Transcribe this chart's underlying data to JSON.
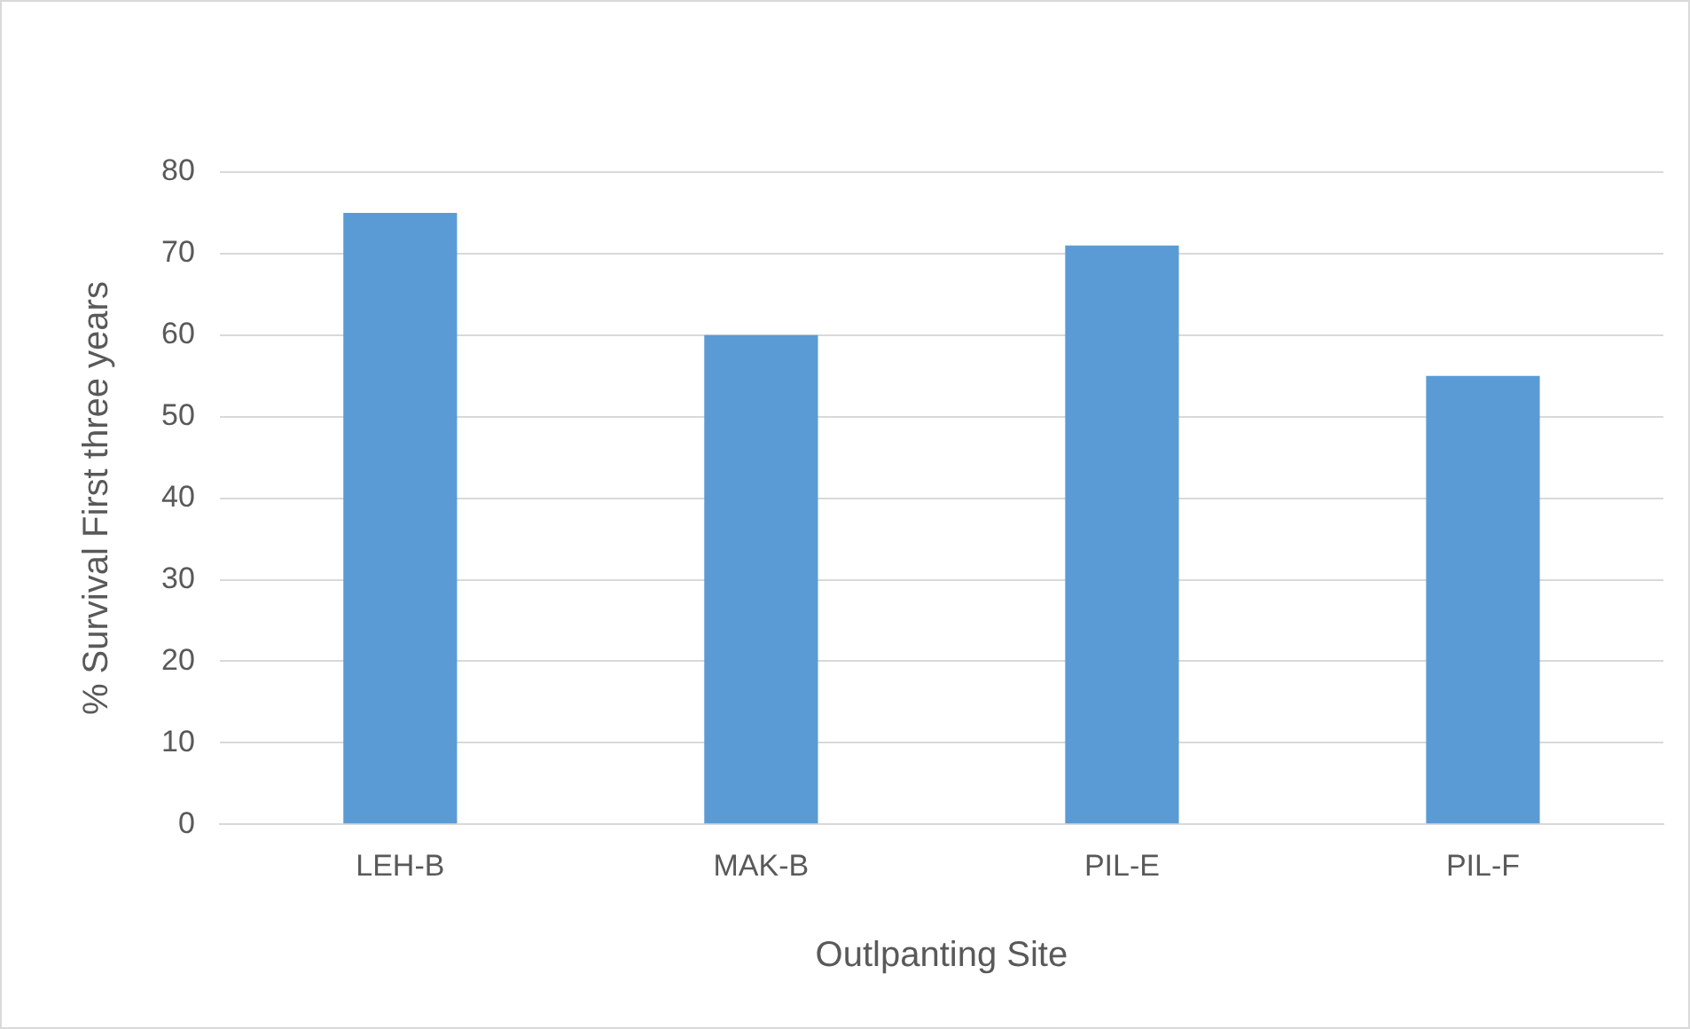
{
  "chart_data": {
    "type": "bar",
    "xlabel": "Outlpanting Site",
    "ylabel": "% Survival First three years",
    "categories": [
      "LEH-B",
      "MAK-B",
      "PIL-E",
      "PIL-F"
    ],
    "values": [
      75,
      60,
      71,
      55
    ],
    "color": "#5b9bd5",
    "ylim": [
      0,
      80
    ],
    "yticks": [
      0,
      10,
      20,
      30,
      40,
      50,
      60,
      70,
      80
    ],
    "grid": "y",
    "legend": false
  }
}
